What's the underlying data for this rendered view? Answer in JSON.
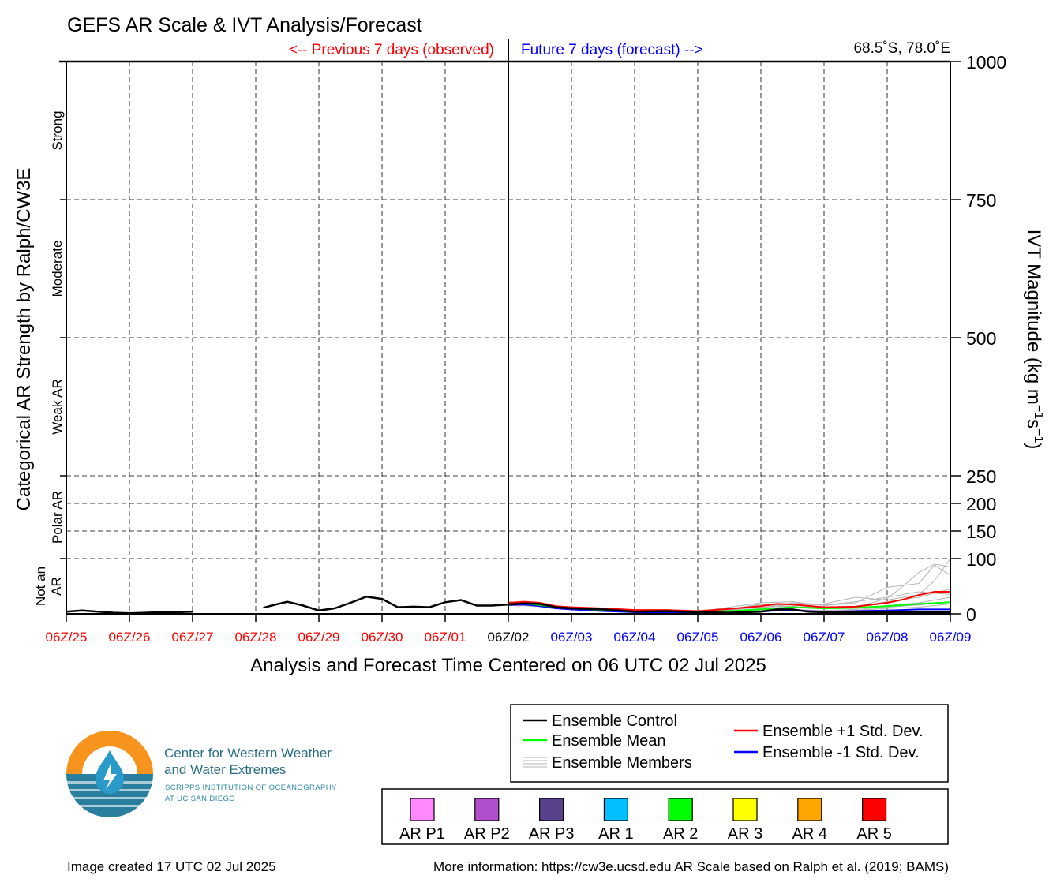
{
  "chart_data": {
    "type": "line",
    "title": "GEFS AR Scale & IVT Analysis/Forecast",
    "observed_label": "<-- Previous 7 days (observed)",
    "forecast_label": "Future 7 days (forecast) -->",
    "location": "68.5˚S, 78.0˚E",
    "xlabel": "Analysis and Forecast Time Centered on 06 UTC 02 Jul 2025",
    "ylabel_left": "Categorical AR Strength by Ralph/CW3E",
    "ylabel_right": {
      "main": "IVT Magnitude (kg m",
      "sup1": "−1",
      "mid": "s",
      "sup2": "−1",
      "end": ")"
    },
    "x_ticks": [
      "06Z/25",
      "06Z/26",
      "06Z/27",
      "06Z/28",
      "06Z/29",
      "06Z/30",
      "06Z/01",
      "06Z/02",
      "06Z/03",
      "06Z/04",
      "06Z/05",
      "06Z/06",
      "06Z/07",
      "06Z/08",
      "06Z/09"
    ],
    "x_tick_colors": [
      "#ff0000",
      "#ff0000",
      "#ff0000",
      "#ff0000",
      "#ff0000",
      "#ff0000",
      "#ff0000",
      "#000000",
      "#0000ff",
      "#0000ff",
      "#0000ff",
      "#0000ff",
      "#0000ff",
      "#0000ff",
      "#0000ff"
    ],
    "x_unit": "days from 06Z/25",
    "xlim": [
      0,
      14
    ],
    "ylim": [
      0,
      1000
    ],
    "y_ticks_right": [
      0,
      100,
      150,
      200,
      250,
      500,
      750,
      1000
    ],
    "grid": true,
    "categories_left": [
      {
        "label": "Strong",
        "low": 750,
        "high": 1000
      },
      {
        "label": "Moderate",
        "low": 500,
        "high": 750
      },
      {
        "label": "Weak AR",
        "low": 250,
        "high": 500
      },
      {
        "label": "Polar AR",
        "low": 100,
        "high": 250
      },
      {
        "label": "Not an AR",
        "lines": [
          "Not an",
          "AR"
        ],
        "low": 0,
        "high": 100
      }
    ],
    "series": [
      {
        "name": "Ensemble Control",
        "color": "#000000",
        "segments": [
          {
            "x": [
              0,
              0.25,
              0.5,
              0.75,
              1,
              1.25,
              1.5,
              1.75,
              2
            ],
            "y": [
              4,
              6,
              4,
              2,
              1,
              2,
              3,
              3,
              4
            ]
          },
          {
            "x": [
              3.12,
              3.25,
              3.5,
              3.75,
              4,
              4.25,
              4.5,
              4.75,
              5,
              5.25,
              5.5,
              5.75,
              6,
              6.25,
              6.5,
              6.75,
              7,
              7.25,
              7.5,
              7.75,
              8,
              8.25,
              8.5,
              8.75,
              9,
              9.5,
              10,
              10.5,
              11,
              11.25,
              11.5,
              11.75,
              12,
              12.5,
              13,
              13.5,
              14
            ],
            "y": [
              11,
              15,
              22,
              15,
              6,
              10,
              20,
              31,
              27,
              12,
              13,
              12,
              21,
              25,
              15,
              15,
              17,
              19,
              18,
              12,
              10,
              9,
              8,
              6,
              4,
              5,
              3,
              2,
              4,
              8,
              8,
              4,
              3,
              3,
              3,
              3,
              3
            ]
          }
        ]
      },
      {
        "name": "Ensemble Mean",
        "color": "#00ff00",
        "x": [
          7,
          7.25,
          7.5,
          7.75,
          8,
          8.5,
          9,
          9.5,
          10,
          10.5,
          11,
          11.5,
          12,
          12.5,
          13,
          13.5,
          14
        ],
        "y": [
          18,
          19,
          16,
          12,
          10,
          7,
          5,
          5,
          4,
          5,
          8,
          12,
          10,
          11,
          14,
          18,
          21
        ]
      },
      {
        "name": "Ensemble +1 Std. Dev.",
        "color": "#ff0000",
        "x": [
          7,
          7.25,
          7.5,
          7.75,
          8,
          8.5,
          9,
          9.5,
          10,
          10.5,
          11,
          11.25,
          11.5,
          12,
          12.5,
          13,
          13.25,
          13.5,
          13.75,
          14
        ],
        "y": [
          20,
          22,
          20,
          14,
          12,
          10,
          7,
          7,
          5,
          9,
          14,
          18,
          17,
          12,
          13,
          20,
          26,
          34,
          40,
          40
        ]
      },
      {
        "name": "Ensemble -1 Std. Dev.",
        "color": "#0000ff",
        "x": [
          7,
          7.25,
          7.5,
          7.75,
          8,
          8.5,
          9,
          9.5,
          10,
          10.5,
          11,
          11.25,
          11.5,
          12,
          12.5,
          13,
          13.5,
          14
        ],
        "y": [
          16,
          17,
          14,
          10,
          8,
          5,
          3,
          2,
          1,
          2,
          4,
          6,
          6,
          4,
          5,
          6,
          8,
          8
        ]
      },
      {
        "name": "Ensemble Members",
        "color": "#b4b4b4",
        "members": [
          {
            "x": [
              7,
              7.5,
              8,
              8.5,
              9,
              9.5,
              10,
              10.5,
              11,
              11.5,
              12,
              12.5,
              13,
              13.25,
              13.5,
              13.75,
              14
            ],
            "y": [
              20,
              17,
              10,
              8,
              6,
              6,
              5,
              9,
              16,
              18,
              12,
              12,
              28,
              50,
              75,
              90,
              85
            ]
          },
          {
            "x": [
              7,
              7.5,
              8,
              8.5,
              9,
              9.5,
              10,
              10.5,
              11,
              11.5,
              12,
              12.5,
              13,
              13.5,
              13.75,
              14
            ],
            "y": [
              18,
              15,
              11,
              9,
              7,
              5,
              4,
              12,
              20,
              22,
              15,
              20,
              48,
              55,
              88,
              70
            ]
          },
          {
            "x": [
              7,
              7.5,
              8,
              8.5,
              9,
              9.5,
              10,
              10.5,
              11,
              11.5,
              12,
              12.5,
              13,
              13.5,
              13.75,
              14
            ],
            "y": [
              22,
              18,
              12,
              9,
              7,
              6,
              5,
              7,
              12,
              14,
              18,
              30,
              25,
              35,
              60,
              100
            ]
          },
          {
            "x": [
              7,
              7.5,
              8,
              8.5,
              9,
              9.5,
              10,
              10.5,
              11,
              11.5,
              12,
              12.5,
              13,
              13.5,
              14
            ],
            "y": [
              17,
              15,
              10,
              7,
              5,
              4,
              4,
              6,
              14,
              16,
              10,
              14,
              22,
              30,
              45
            ]
          },
          {
            "x": [
              7,
              7.5,
              8,
              8.5,
              9,
              9.5,
              10,
              10.5,
              11,
              11.5,
              12,
              12.5,
              13,
              13.5,
              14
            ],
            "y": [
              19,
              16,
              11,
              8,
              6,
              4,
              3,
              8,
              18,
              12,
              9,
              10,
              15,
              20,
              30
            ]
          },
          {
            "x": [
              7,
              7.5,
              8,
              8.5,
              9,
              9.5,
              10,
              10.5,
              11,
              11.5,
              12,
              12.5,
              13,
              13.5,
              14
            ],
            "y": [
              15,
              14,
              9,
              6,
              4,
              3,
              3,
              4,
              8,
              8,
              6,
              8,
              12,
              16,
              22
            ]
          },
          {
            "x": [
              7,
              7.5,
              8,
              8.5,
              9,
              9.5,
              10,
              10.5,
              11,
              11.5,
              12,
              12.5,
              13,
              13.5,
              14
            ],
            "y": [
              21,
              17,
              12,
              8,
              6,
              5,
              3,
              5,
              10,
              20,
              16,
              22,
              30,
              40,
              35
            ]
          },
          {
            "x": [
              7,
              7.5,
              8,
              8.5,
              9,
              9.5,
              10,
              10.5,
              11,
              11.5,
              12,
              12.5,
              13,
              13.5,
              14
            ],
            "y": [
              16,
              15,
              10,
              6,
              4,
              3,
              2,
              3,
              6,
              6,
              4,
              6,
              10,
              12,
              18
            ]
          }
        ]
      }
    ],
    "legend": {
      "lines": [
        {
          "label": "Ensemble Control",
          "color": "#000000"
        },
        {
          "label": "Ensemble Mean",
          "color": "#00ff00"
        },
        {
          "label": "Ensemble Members",
          "color": "#b4b4b4"
        },
        {
          "label": "Ensemble +1 Std. Dev.",
          "color": "#ff0000"
        },
        {
          "label": "Ensemble -1 Std. Dev.",
          "color": "#0000ff"
        }
      ],
      "ar_scale": [
        {
          "label": "AR P1",
          "color": "#ff88ff"
        },
        {
          "label": "AR P2",
          "color": "#b24fcc"
        },
        {
          "label": "AR P3",
          "color": "#58408a"
        },
        {
          "label": "AR 1",
          "color": "#00bfff"
        },
        {
          "label": "AR 2",
          "color": "#00ff00"
        },
        {
          "label": "AR 3",
          "color": "#ffff00"
        },
        {
          "label": "AR 4",
          "color": "#ffa500"
        },
        {
          "label": "AR 5",
          "color": "#ff0000"
        }
      ]
    }
  },
  "logo": {
    "line1": "Center for Western Weather",
    "line2": "and Water Extremes",
    "line3": "SCRIPPS INSTITUTION OF OCEANOGRAPHY",
    "line4": "AT UC SAN DIEGO",
    "orange": "#f7941d",
    "teal": "#2a7f9e"
  },
  "footer": {
    "created": "Image created 17 UTC 02 Jul 2025",
    "info": "More information: https://cw3e.ucsd.edu AR Scale based on Ralph et al. (2019; BAMS)"
  }
}
